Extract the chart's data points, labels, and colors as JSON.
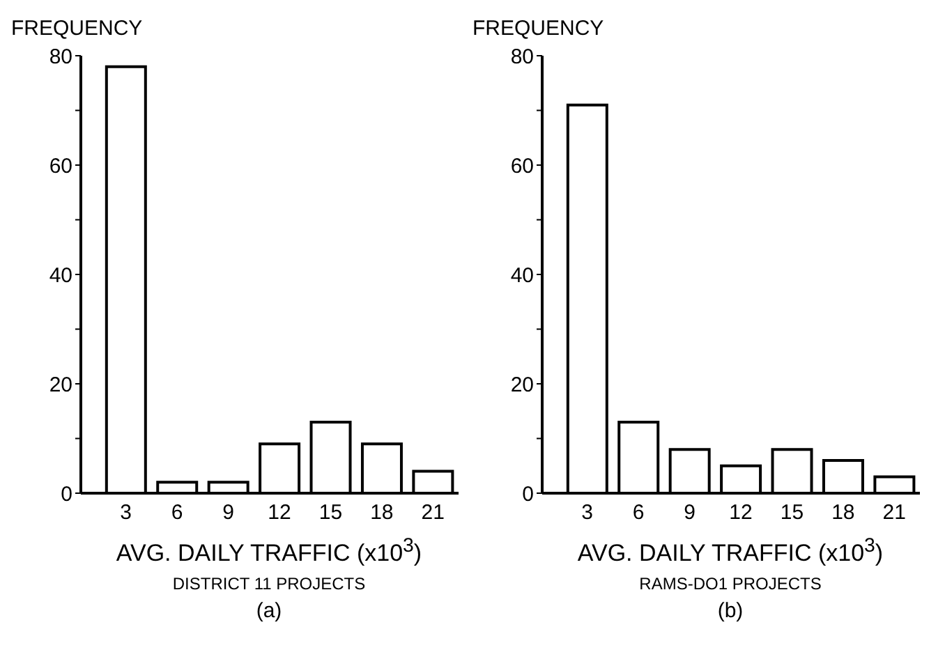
{
  "chart_data": [
    {
      "type": "bar",
      "ylabel": "FREQUENCY",
      "xlabel": "AVG. DAILY TRAFFIC (x10$^{3}$)",
      "annotations": [
        "DISTRICT 11 PROJECTS",
        "(a)"
      ],
      "categories": [
        "3",
        "6",
        "9",
        "12",
        "15",
        "18",
        "21"
      ],
      "values": [
        78,
        2,
        2,
        9,
        13,
        9,
        4
      ],
      "color": "#ffffff",
      "ylim": [
        0,
        80
      ],
      "yticks": [
        0,
        {
          "value": 10,
          "label": null
        },
        20,
        {
          "value": 30,
          "label": null
        },
        40,
        {
          "value": 50,
          "label": null
        },
        60,
        {
          "value": 70,
          "label": null
        },
        80
      ],
      "grid": false
    },
    {
      "type": "bar",
      "ylabel": "FREQUENCY",
      "xlabel": "AVG. DAILY TRAFFIC (x10$^{3}$)",
      "annotations": [
        "RAMS-DO1 PROJECTS",
        "(b)"
      ],
      "categories": [
        "3",
        "6",
        "9",
        "12",
        "15",
        "18",
        "21"
      ],
      "values": [
        71,
        13,
        8,
        5,
        8,
        6,
        3
      ],
      "color": "#ffffff",
      "ylim": [
        0,
        80
      ],
      "yticks": [
        0,
        {
          "value": 10,
          "label": null
        },
        20,
        {
          "value": 30,
          "label": null
        },
        40,
        {
          "value": 50,
          "label": null
        },
        60,
        {
          "value": 70,
          "label": null
        },
        80
      ],
      "grid": false
    }
  ]
}
